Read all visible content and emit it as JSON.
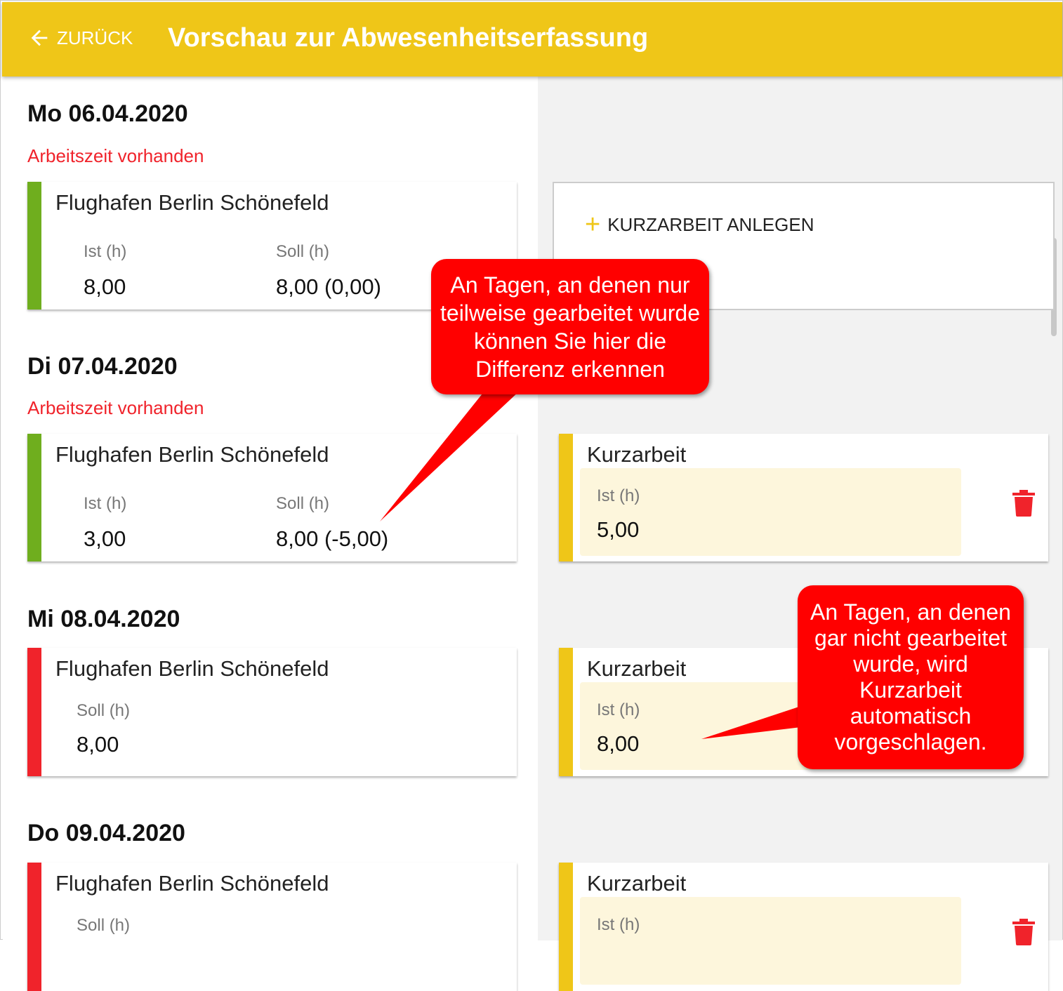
{
  "header": {
    "back_label": "ZURÜCK",
    "title": "Vorschau zur Abwesenheitserfassung"
  },
  "days": [
    {
      "date": "Mo 06.04.2020",
      "status": "Arbeitszeit vorhanden",
      "location": "Flughafen Berlin Schönefeld",
      "ist_label": "Ist (h)",
      "ist": "8,00",
      "soll_label": "Soll (h)",
      "soll": "8,00 (0,00)"
    },
    {
      "date": "Di 07.04.2020",
      "status": "Arbeitszeit vorhanden",
      "location": "Flughafen Berlin Schönefeld",
      "ist_label": "Ist (h)",
      "ist": "3,00",
      "soll_label": "Soll (h)",
      "soll": "8,00 (-5,00)",
      "kurz": {
        "title": "Kurzarbeit",
        "ist_label": "Ist (h)",
        "ist": "5,00"
      }
    },
    {
      "date": "Mi 08.04.2020",
      "location": "Flughafen Berlin Schönefeld",
      "soll_label": "Soll (h)",
      "soll": "8,00",
      "kurz": {
        "title": "Kurzarbeit",
        "ist_label": "Ist (h)",
        "ist": "8,00"
      }
    },
    {
      "date": "Do 09.04.2020",
      "location": "Flughafen Berlin Schönefeld",
      "soll_label": "Soll (h)",
      "kurz": {
        "title": "Kurzarbeit",
        "ist_label": "Ist (h)"
      }
    }
  ],
  "add_kurzarbeit_label": "KURZARBEIT ANLEGEN",
  "callouts": [
    "An Tagen, an denen nur teilweise gearbeitet wurde können Sie hier die Differenz erkennen",
    "An Tagen, an denen gar nicht gearbeitet wurde, wird Kurzarbeit automatisch vorgeschlagen."
  ],
  "colors": {
    "header": "#EFC618",
    "worked": "#6fae1e",
    "missing": "#f0232b",
    "kurzarbeit": "#EFC618",
    "callout": "#ff0000"
  }
}
